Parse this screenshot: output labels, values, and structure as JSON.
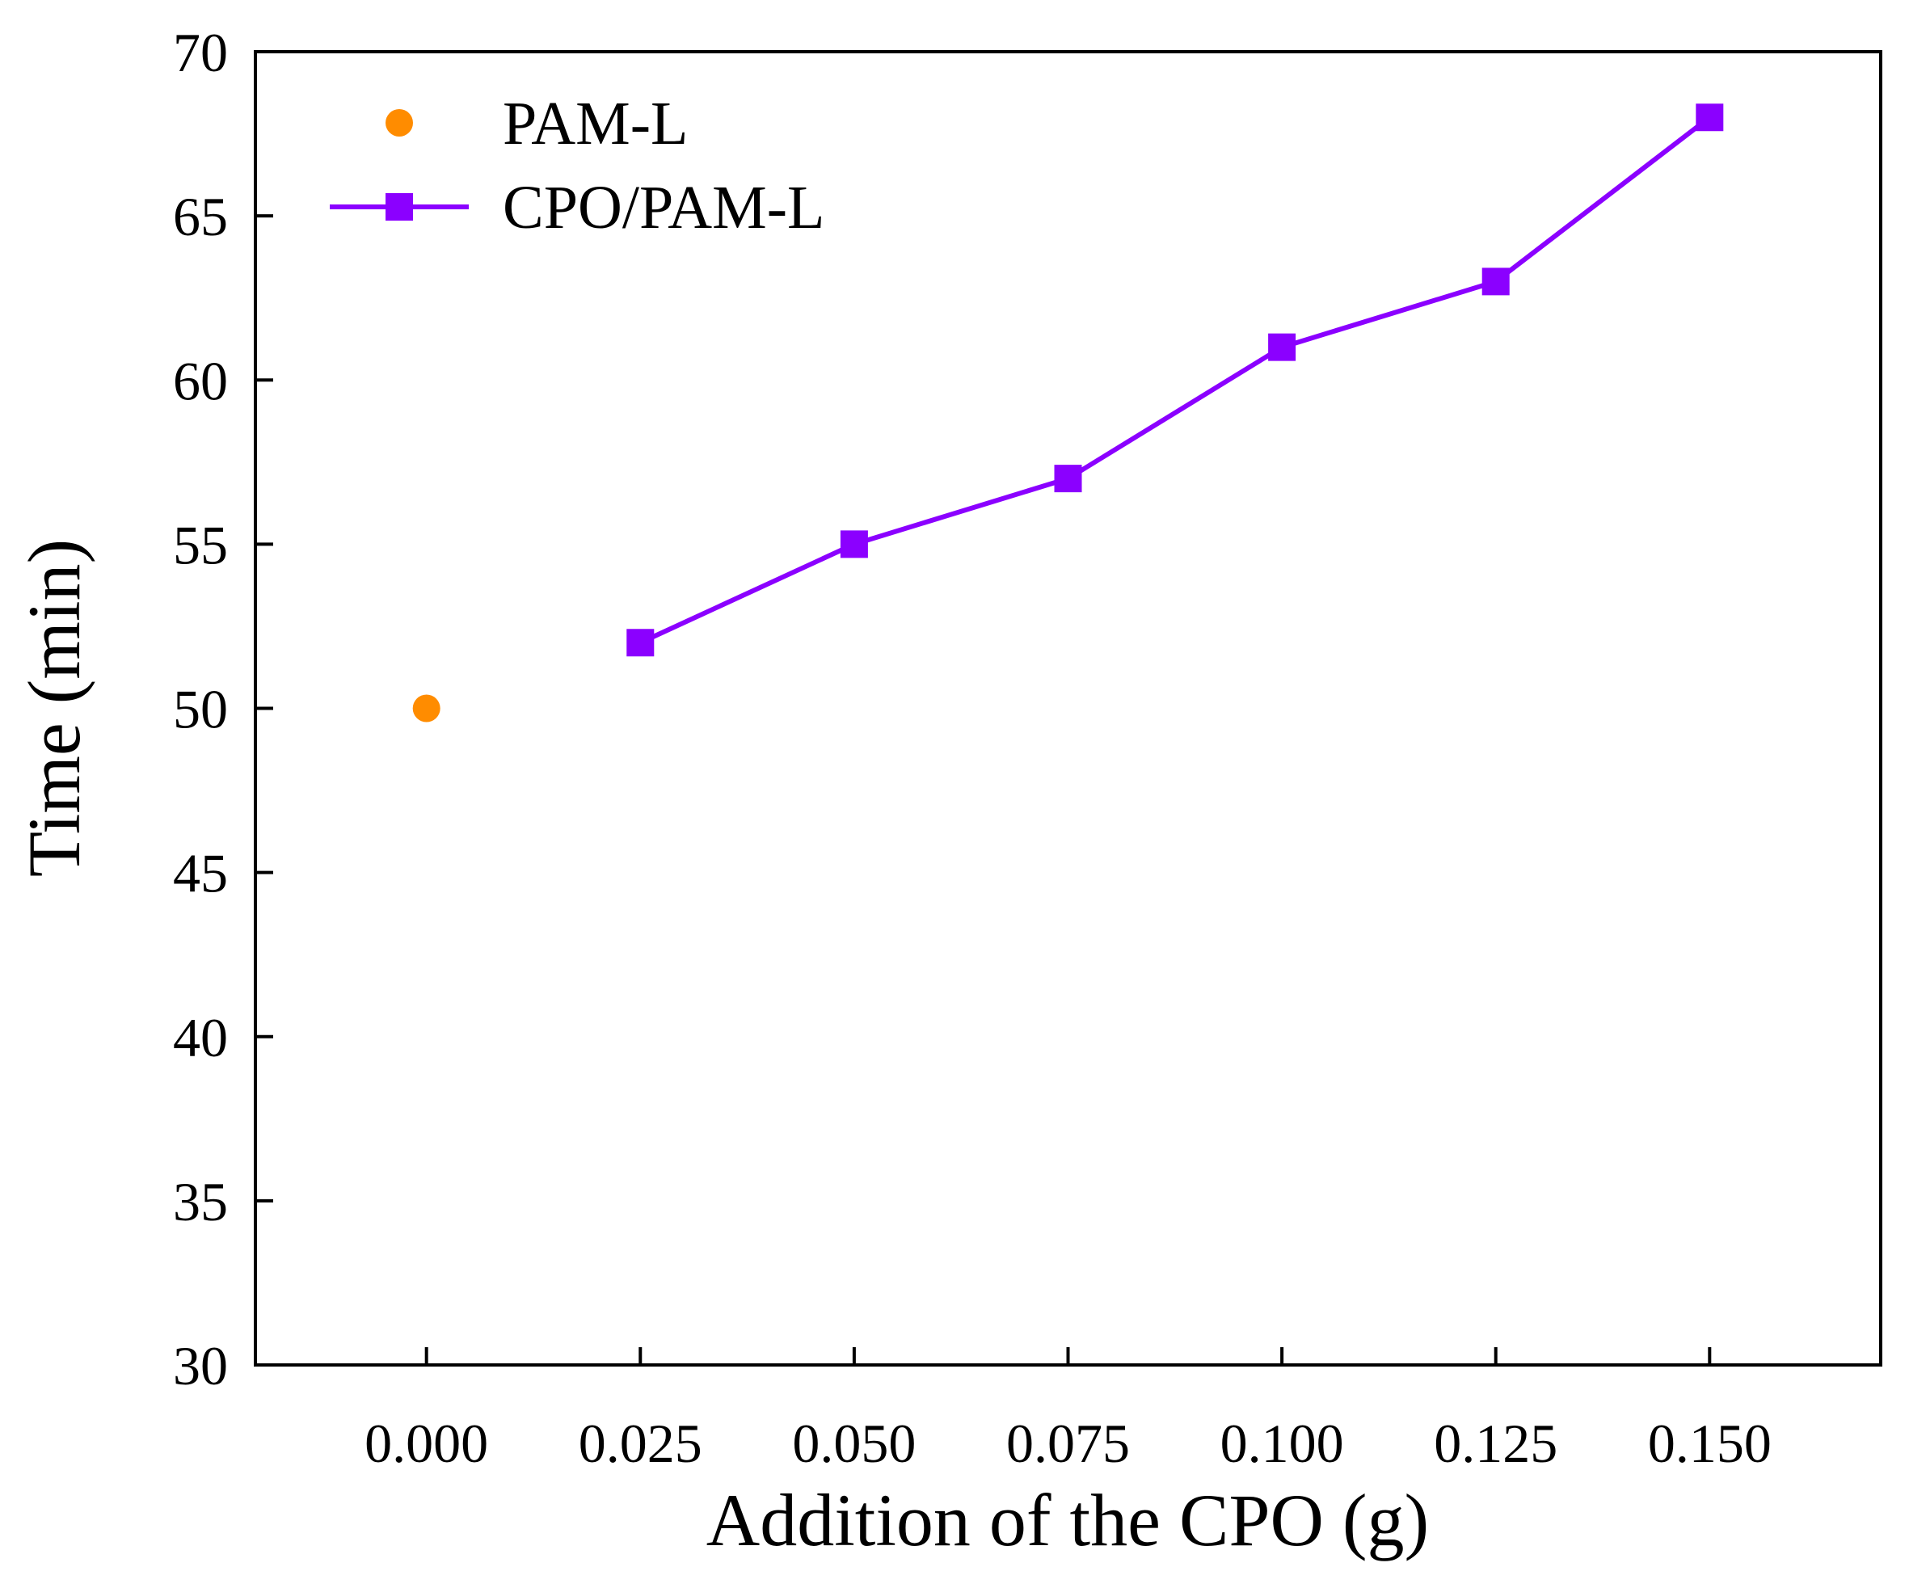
{
  "chart_data": {
    "type": "line",
    "title": "",
    "xlabel": "Addition of the CPO (g)",
    "ylabel": "Time (min)",
    "xlim": [
      -0.02,
      0.17
    ],
    "ylim": [
      30,
      70
    ],
    "xticks": [
      0.0,
      0.025,
      0.05,
      0.075,
      0.1,
      0.125,
      0.15
    ],
    "xtick_labels": [
      "0.000",
      "0.025",
      "0.050",
      "0.075",
      "0.100",
      "0.125",
      "0.150"
    ],
    "yticks": [
      30,
      35,
      40,
      45,
      50,
      55,
      60,
      65,
      70
    ],
    "ytick_labels": [
      "30",
      "35",
      "40",
      "45",
      "50",
      "55",
      "60",
      "65",
      "70"
    ],
    "grid": false,
    "legend_position": "top-left",
    "series": [
      {
        "name": "PAM-L",
        "style": "scatter",
        "marker": "circle",
        "color": "#FF8C00",
        "x": [
          0.0
        ],
        "y": [
          50
        ]
      },
      {
        "name": "CPO/PAM-L",
        "style": "line",
        "marker": "square",
        "color": "#8B00FF",
        "x": [
          0.025,
          0.05,
          0.075,
          0.1,
          0.125,
          0.15
        ],
        "y": [
          52,
          55,
          57,
          61,
          63,
          68
        ]
      }
    ]
  }
}
